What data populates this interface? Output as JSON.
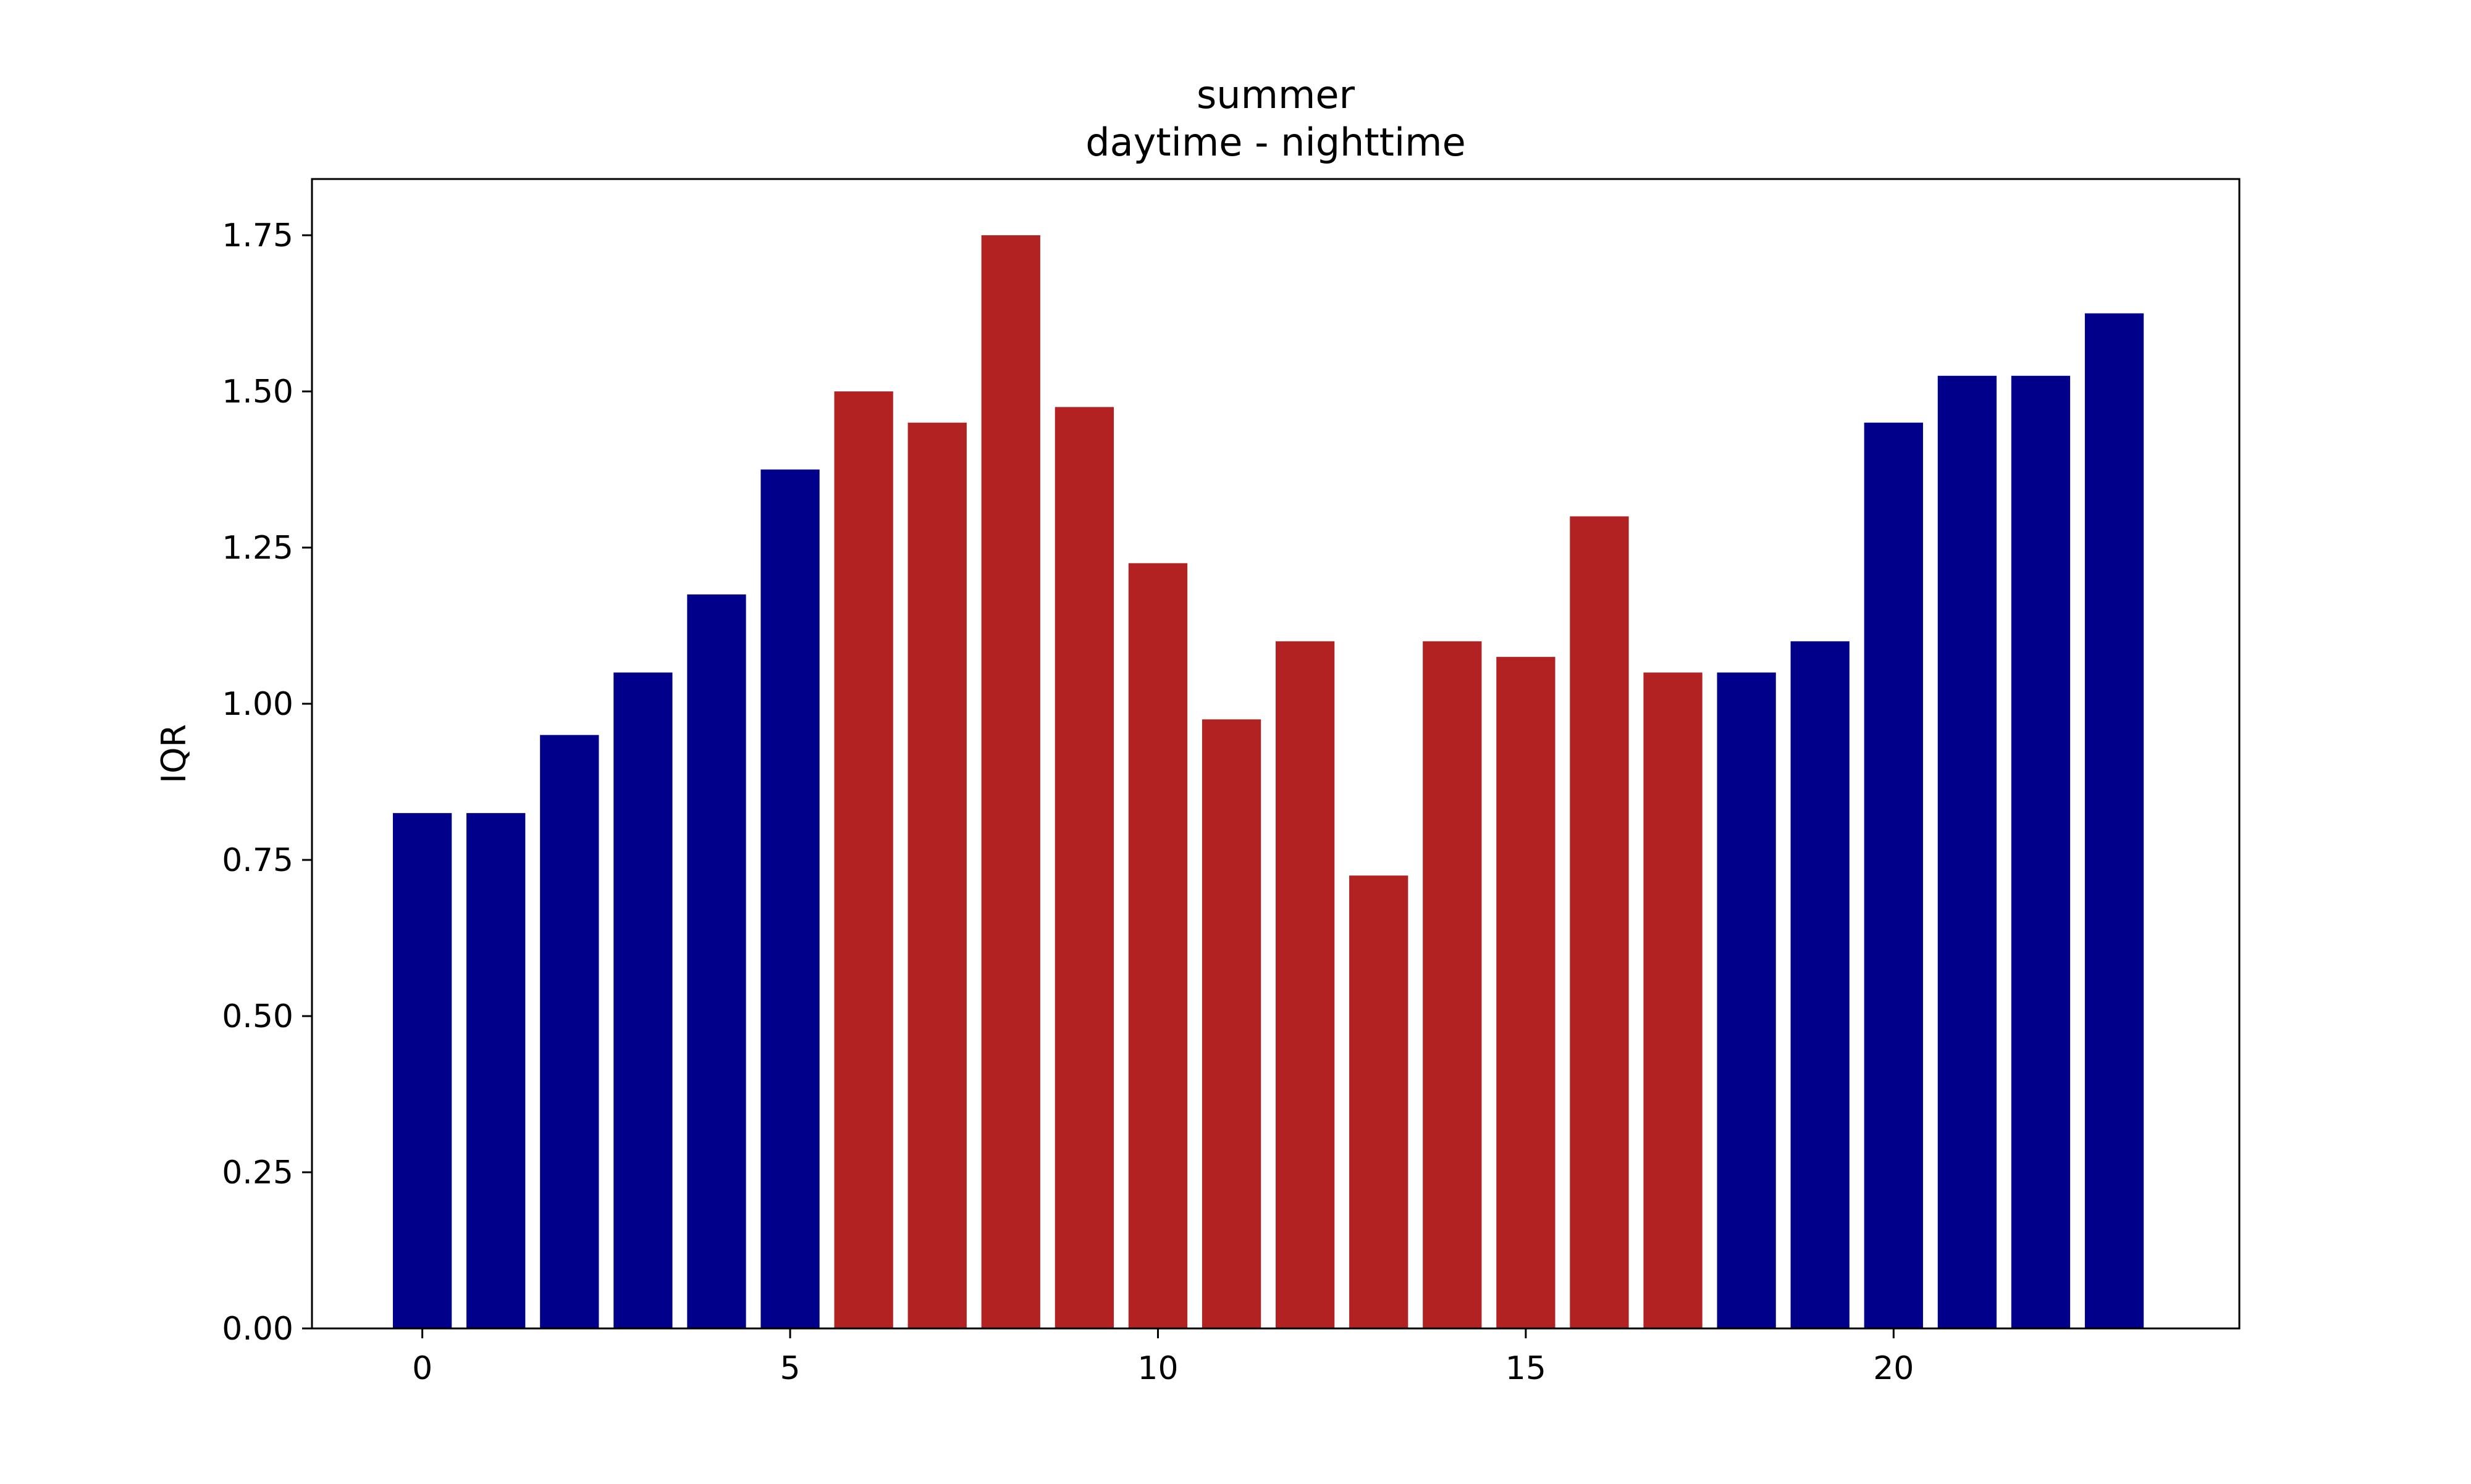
{
  "chart_data": {
    "type": "bar",
    "title": "summer",
    "subtitle": "daytime - nighttime",
    "xlabel": "",
    "ylabel": "IQR",
    "x": [
      0,
      1,
      2,
      3,
      4,
      5,
      6,
      7,
      8,
      9,
      10,
      11,
      12,
      13,
      14,
      15,
      16,
      17,
      18,
      19,
      20,
      21,
      22,
      23
    ],
    "values": [
      0.825,
      0.825,
      0.95,
      1.05,
      1.175,
      1.375,
      1.5,
      1.45,
      1.75,
      1.475,
      1.225,
      0.975,
      1.1,
      0.725,
      1.1,
      1.075,
      1.3,
      1.05,
      1.05,
      1.1,
      1.45,
      1.525,
      1.525,
      1.625
    ],
    "period": [
      "nighttime",
      "nighttime",
      "nighttime",
      "nighttime",
      "nighttime",
      "nighttime",
      "daytime",
      "daytime",
      "daytime",
      "daytime",
      "daytime",
      "daytime",
      "daytime",
      "daytime",
      "daytime",
      "daytime",
      "daytime",
      "daytime",
      "nighttime",
      "nighttime",
      "nighttime",
      "nighttime",
      "nighttime",
      "nighttime"
    ],
    "colors": {
      "daytime": "#b22222",
      "nighttime": "#00008b"
    },
    "xlim": [
      -1.5,
      24.7
    ],
    "ylim": [
      0,
      1.84
    ],
    "xticks": [
      0,
      5,
      10,
      15,
      20
    ],
    "xtick_labels": [
      "0",
      "5",
      "10",
      "15",
      "20"
    ],
    "yticks": [
      0,
      0.25,
      0.5,
      0.75,
      1.0,
      1.25,
      1.5,
      1.75
    ],
    "ytick_labels": [
      "0.00",
      "0.25",
      "0.50",
      "0.75",
      "1.00",
      "1.25",
      "1.50",
      "1.75"
    ],
    "bar_width": 0.8,
    "grid": false,
    "legend": "none"
  }
}
